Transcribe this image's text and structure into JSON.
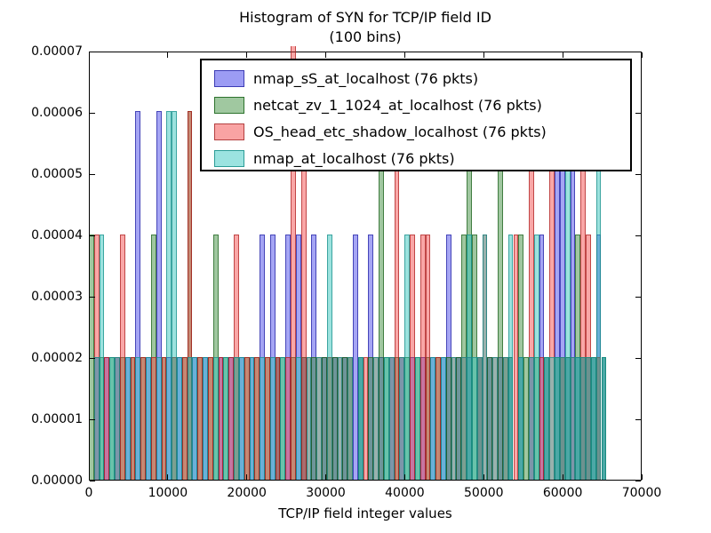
{
  "figure": {
    "title_line1": "Histogram of SYN for TCP/IP field ID",
    "title_line2": "(100 bins)",
    "xlabel": "TCP/IP field integer values"
  },
  "chart_data": {
    "type": "bar",
    "subtype": "overlaid-histogram",
    "title": "Histogram of SYN for TCP/IP field ID (100 bins)",
    "xlabel": "TCP/IP field integer values",
    "ylabel": "",
    "xlim": [
      0,
      70000
    ],
    "ylim": [
      0,
      7e-05
    ],
    "xticks": [
      0,
      10000,
      20000,
      30000,
      40000,
      50000,
      60000,
      70000
    ],
    "xtick_labels": [
      "0",
      "10000",
      "20000",
      "30000",
      "40000",
      "50000",
      "60000",
      "70000"
    ],
    "yticks": [
      0,
      1e-05,
      2e-05,
      3e-05,
      4e-05,
      5e-05,
      6e-05,
      7e-05
    ],
    "ytick_labels": [
      "0.00000",
      "0.00001",
      "0.00002",
      "0.00003",
      "0.00004",
      "0.00005",
      "0.00006",
      "0.00007"
    ],
    "bins": 100,
    "bin_range": [
      0,
      65535
    ],
    "density_per_count": 2.00787e-05,
    "legend_position": "upper center",
    "grid": false,
    "series": [
      {
        "name": "nmap_sS_at_localhost (76 pkts)",
        "packets": 76,
        "fill": "rgba(55,55,230,0.45)",
        "edge": "rgba(30,30,160,0.7)",
        "swatch_fill": "#9c9cf4",
        "swatch_edge": "#3c3cb4",
        "bin_counts": [
          0,
          1,
          0,
          1,
          0,
          1,
          0,
          1,
          0,
          3,
          0,
          1,
          0,
          3,
          0,
          1,
          0,
          1,
          0,
          0,
          1,
          0,
          1,
          0,
          0,
          1,
          0,
          1,
          0,
          1,
          0,
          1,
          0,
          2,
          0,
          2,
          1,
          0,
          2,
          0,
          2,
          1,
          0,
          2,
          0,
          1,
          0,
          1,
          0,
          1,
          0,
          2,
          1,
          0,
          2,
          0,
          1,
          0,
          1,
          0,
          1,
          0,
          1,
          0,
          1,
          0,
          1,
          0,
          1,
          2,
          0,
          1,
          0,
          1,
          0,
          1,
          0,
          1,
          0,
          1,
          0,
          1,
          0,
          1,
          0,
          1,
          0,
          2,
          1,
          0,
          3,
          3,
          1,
          3,
          1,
          1,
          1,
          1,
          2,
          1
        ]
      },
      {
        "name": "netcat_zv_1_1024_at_localhost (76 pkts)",
        "packets": 76,
        "fill": "rgba(45,130,45,0.45)",
        "edge": "rgba(25,95,25,0.7)",
        "swatch_fill": "#a0c8a0",
        "swatch_edge": "#2d732d",
        "bin_counts": [
          2,
          0,
          1,
          0,
          1,
          0,
          1,
          0,
          1,
          0,
          1,
          0,
          2,
          0,
          1,
          0,
          1,
          0,
          1,
          3,
          0,
          1,
          0,
          1,
          2,
          0,
          1,
          0,
          1,
          0,
          1,
          0,
          1,
          0,
          1,
          0,
          1,
          1,
          0,
          1,
          0,
          1,
          0,
          1,
          0,
          1,
          1,
          1,
          0,
          1,
          1,
          0,
          1,
          0,
          1,
          0,
          3,
          1,
          0,
          1,
          0,
          1,
          0,
          1,
          0,
          1,
          0,
          1,
          0,
          1,
          0,
          1,
          2,
          3,
          2,
          1,
          0,
          1,
          0,
          3,
          1,
          1,
          0,
          2,
          1,
          0,
          1,
          0,
          1,
          0,
          1,
          1,
          1,
          0,
          2,
          1,
          1,
          1,
          1,
          1
        ]
      },
      {
        "name": "OS_head_etc_shadow_localhost (76 pkts)",
        "packets": 76,
        "fill": "rgba(242,60,60,0.45)",
        "edge": "rgba(170,30,30,0.7)",
        "swatch_fill": "#f9a3a3",
        "swatch_edge": "#b44040",
        "bin_counts": [
          0,
          2,
          0,
          1,
          0,
          1,
          2,
          0,
          1,
          0,
          1,
          0,
          1,
          0,
          1,
          0,
          1,
          0,
          1,
          3,
          0,
          1,
          0,
          1,
          0,
          1,
          0,
          1,
          2,
          0,
          1,
          0,
          1,
          0,
          1,
          0,
          1,
          0,
          1,
          4,
          0,
          3,
          1,
          0,
          1,
          0,
          1,
          0,
          1,
          0,
          1,
          0,
          0,
          1,
          0,
          1,
          0,
          0,
          1,
          3,
          1,
          0,
          2,
          0,
          2,
          2,
          0,
          1,
          0,
          0,
          1,
          0,
          1,
          0,
          0,
          1,
          2,
          0,
          1,
          0,
          1,
          0,
          2,
          0,
          0,
          3,
          0,
          1,
          0,
          3,
          0,
          1,
          0,
          1,
          0,
          3,
          2,
          0,
          1,
          0
        ]
      },
      {
        "name": "nmap_at_localhost (76 pkts)",
        "packets": 76,
        "fill": "rgba(35,190,182,0.45)",
        "edge": "rgba(20,140,135,0.7)",
        "swatch_fill": "#9be3e0",
        "swatch_edge": "#2b9c96",
        "bin_counts": [
          0,
          1,
          2,
          0,
          1,
          1,
          0,
          1,
          0,
          1,
          0,
          1,
          0,
          1,
          0,
          3,
          3,
          1,
          0,
          1,
          1,
          0,
          1,
          0,
          1,
          0,
          1,
          0,
          1,
          1,
          0,
          1,
          0,
          1,
          0,
          1,
          0,
          1,
          0,
          0,
          1,
          0,
          1,
          0,
          1,
          0,
          2,
          0,
          1,
          0,
          1,
          0,
          1,
          0,
          0,
          1,
          0,
          1,
          1,
          0,
          1,
          2,
          0,
          1,
          0,
          0,
          1,
          0,
          1,
          0,
          1,
          0,
          1,
          2,
          1,
          1,
          2,
          0,
          1,
          0,
          1,
          2,
          0,
          1,
          0,
          1,
          2,
          0,
          1,
          1,
          1,
          1,
          3,
          1,
          1,
          1,
          1,
          1,
          3,
          1
        ]
      }
    ]
  }
}
